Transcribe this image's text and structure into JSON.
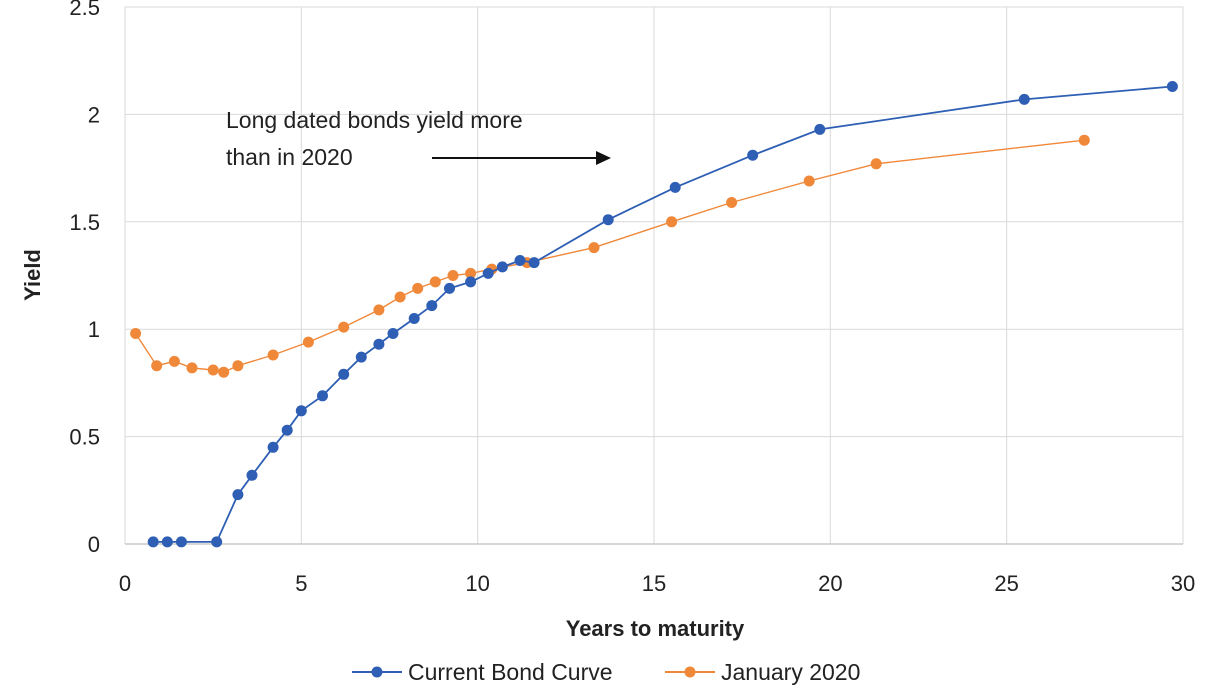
{
  "chart_data": {
    "type": "line",
    "xlabel": "Years to maturity",
    "ylabel": "Yield",
    "xlim": [
      0,
      30
    ],
    "ylim": [
      0,
      2.5
    ],
    "xticks": [
      "0",
      "5",
      "10",
      "15",
      "20",
      "25",
      "30"
    ],
    "yticks": [
      "0",
      "0.5",
      "1",
      "1.5",
      "2",
      "2.5"
    ],
    "grid": true,
    "legend_position": "bottom",
    "annotation": {
      "line1": "Long dated bonds yield more",
      "line2": "than in 2020"
    },
    "series": [
      {
        "name": "Current Bond Curve",
        "color": "#2e5fb4",
        "x": [
          0.8,
          1.2,
          1.6,
          2.6,
          3.2,
          3.6,
          4.2,
          4.6,
          5.0,
          5.6,
          6.2,
          6.7,
          7.2,
          7.6,
          8.2,
          8.7,
          9.2,
          9.8,
          10.3,
          10.7,
          11.2,
          11.6,
          13.7,
          15.6,
          17.8,
          19.7,
          25.5,
          29.7
        ],
        "y": [
          0.01,
          0.01,
          0.01,
          0.01,
          0.23,
          0.32,
          0.45,
          0.53,
          0.62,
          0.69,
          0.79,
          0.87,
          0.93,
          0.98,
          1.05,
          1.11,
          1.19,
          1.22,
          1.26,
          1.29,
          1.32,
          1.31,
          1.51,
          1.66,
          1.81,
          1.93,
          2.07,
          2.13
        ]
      },
      {
        "name": "January 2020",
        "color": "#f0883a",
        "x": [
          0.3,
          0.9,
          1.4,
          1.9,
          2.5,
          2.8,
          3.2,
          4.2,
          5.2,
          6.2,
          7.2,
          7.8,
          8.3,
          8.8,
          9.3,
          9.8,
          10.4,
          11.4,
          13.3,
          15.5,
          17.2,
          19.4,
          21.3,
          27.2
        ],
        "y": [
          0.98,
          0.83,
          0.85,
          0.82,
          0.81,
          0.8,
          0.83,
          0.88,
          0.94,
          1.01,
          1.09,
          1.15,
          1.19,
          1.22,
          1.25,
          1.26,
          1.28,
          1.31,
          1.38,
          1.5,
          1.59,
          1.69,
          1.77,
          1.88
        ]
      }
    ]
  }
}
